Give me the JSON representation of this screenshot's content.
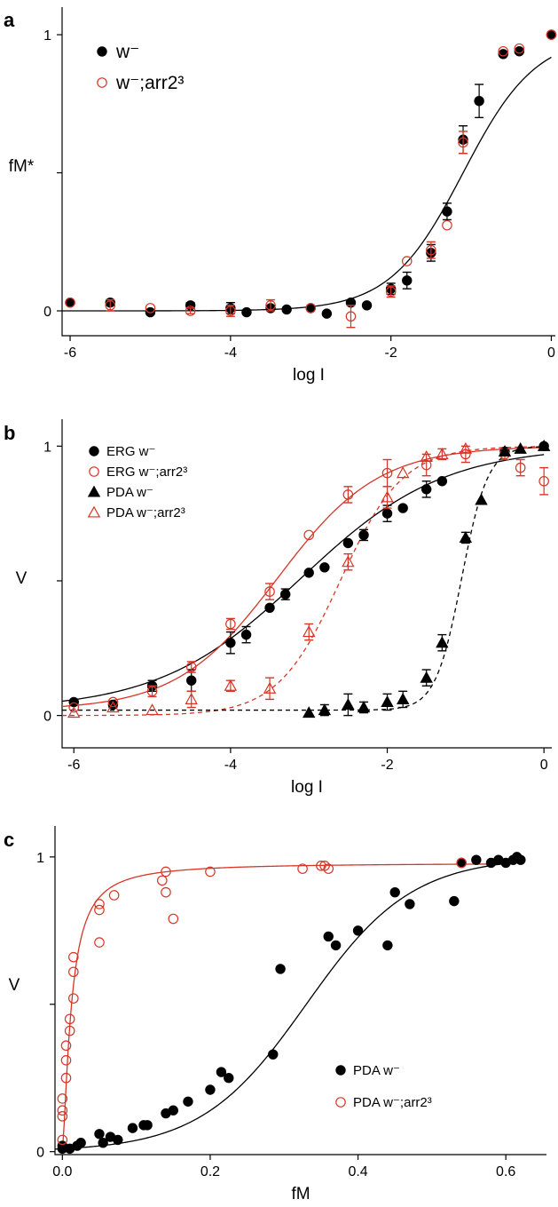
{
  "colors": {
    "black": "#000000",
    "red": "#d73527"
  },
  "chart_data": [
    {
      "panel": "a",
      "type": "scatter",
      "xlabel": "log I",
      "ylabel": "fM*",
      "xlim": [
        -6.1,
        0.05
      ],
      "ylim": [
        -0.09,
        1.1
      ],
      "xticks": [
        -6,
        -4,
        -2,
        0
      ],
      "xtick_labels": [
        "-6",
        "-4",
        "-2",
        "0"
      ],
      "yticks": [
        0,
        0.5,
        1
      ],
      "ytick_labels": [
        "0",
        "",
        "1"
      ],
      "legend": {
        "position": "top-left",
        "style": "large",
        "entries": [
          "w⁻",
          "w⁻;arr2³"
        ]
      },
      "series": [
        {
          "name": "w⁻",
          "marker": "filled-circle",
          "color": "#000000",
          "x": [
            -6,
            -5.5,
            -5,
            -4.5,
            -4,
            -3.8,
            -3.5,
            -3.3,
            -3,
            -2.8,
            -2.5,
            -2.3,
            -2,
            -1.8,
            -1.5,
            -1.3,
            -1.1,
            -0.9,
            -0.6,
            -0.4,
            0
          ],
          "y": [
            0.03,
            0.03,
            -0.005,
            0.02,
            0.01,
            -0.005,
            0.01,
            0.005,
            0.01,
            -0.01,
            0.03,
            0.02,
            0.08,
            0.11,
            0.21,
            0.36,
            0.62,
            0.76,
            0.93,
            0.94,
            1.0
          ],
          "err": [
            0,
            0.01,
            0,
            0.01,
            0.02,
            0,
            0,
            0,
            0,
            0,
            0,
            0,
            0.02,
            0.03,
            0.03,
            0.03,
            0.05,
            0.06,
            0,
            0,
            0
          ]
        },
        {
          "name": "w⁻;arr2³",
          "marker": "open-circle",
          "color": "#d73527",
          "x": [
            -6,
            -5.5,
            -5,
            -4.5,
            -4,
            -3.5,
            -3,
            -2.5,
            -2,
            -1.8,
            -1.5,
            -1.3,
            -1.1,
            -0.6,
            -0.4,
            0
          ],
          "y": [
            0.03,
            0.02,
            0.01,
            0.0,
            0.0,
            0.02,
            0.01,
            -0.02,
            0.07,
            0.18,
            0.22,
            0.31,
            0.61,
            0.94,
            0.95,
            1.0
          ],
          "err": [
            0,
            0.02,
            0,
            0.01,
            0.02,
            0.02,
            0,
            0.04,
            0.02,
            0,
            0.03,
            0,
            0.04,
            0,
            0,
            0
          ]
        }
      ],
      "curves": [
        {
          "color": "#000000",
          "dash": "solid",
          "fn": "logistic",
          "x0": -1.1,
          "k": 2.2,
          "bottom": 0,
          "top": 1.0
        }
      ]
    },
    {
      "panel": "b",
      "type": "scatter",
      "xlabel": "log I",
      "ylabel": "V",
      "xlim": [
        -6.15,
        0.1
      ],
      "ylim": [
        -0.12,
        1.1
      ],
      "xticks": [
        -6,
        -4,
        -2,
        0
      ],
      "xtick_labels": [
        "-6",
        "-4",
        "-2",
        "0"
      ],
      "yticks": [
        0,
        0.5,
        1
      ],
      "ytick_labels": [
        "0",
        "",
        "1"
      ],
      "legend": {
        "position": "top-left",
        "style": "small",
        "entries": [
          "ERG w⁻",
          "ERG w⁻;arr2³",
          "PDA w⁻",
          "PDA w⁻;arr2³"
        ]
      },
      "series": [
        {
          "name": "ERG w⁻",
          "marker": "filled-circle",
          "color": "#000000",
          "x": [
            -6,
            -5.5,
            -5,
            -4.5,
            -4,
            -3.8,
            -3.5,
            -3.3,
            -3,
            -2.8,
            -2.5,
            -2.3,
            -2,
            -1.8,
            -1.5,
            -1.3,
            -0.5,
            0
          ],
          "y": [
            0.05,
            0.04,
            0.11,
            0.13,
            0.27,
            0.3,
            0.4,
            0.45,
            0.53,
            0.55,
            0.64,
            0.67,
            0.75,
            0.77,
            0.84,
            0.87,
            0.98,
            1.0
          ],
          "err": [
            0,
            0.01,
            0.02,
            0.04,
            0.04,
            0.03,
            0,
            0.02,
            0,
            0,
            0,
            0.02,
            0.03,
            0,
            0.03,
            0,
            0,
            0
          ]
        },
        {
          "name": "ERG w⁻;arr2³",
          "marker": "open-circle",
          "color": "#d73527",
          "x": [
            -6,
            -5.5,
            -5,
            -4.5,
            -4,
            -3.5,
            -3,
            -2.5,
            -2,
            -1.5,
            -1,
            -0.5,
            -0.3,
            0
          ],
          "y": [
            0.03,
            0.05,
            0.09,
            0.18,
            0.34,
            0.46,
            0.67,
            0.82,
            0.9,
            0.93,
            0.97,
            0.97,
            0.92,
            0.87
          ],
          "err": [
            0,
            0,
            0.02,
            0.02,
            0.02,
            0.03,
            0,
            0.03,
            0.05,
            0.04,
            0.03,
            0.02,
            0.03,
            0.05
          ]
        },
        {
          "name": "PDA w⁻",
          "marker": "filled-triangle",
          "color": "#000000",
          "x": [
            -3,
            -2.8,
            -2.5,
            -2.3,
            -2,
            -1.8,
            -1.5,
            -1.3,
            -1,
            -0.8,
            -0.5,
            -0.3,
            0
          ],
          "y": [
            0.01,
            0.02,
            0.04,
            0.03,
            0.05,
            0.06,
            0.14,
            0.27,
            0.66,
            0.8,
            0.98,
            0.99,
            1.0
          ],
          "err": [
            0,
            0.02,
            0.04,
            0.02,
            0.03,
            0.03,
            0.03,
            0.03,
            0.02,
            0,
            0,
            0,
            0
          ]
        },
        {
          "name": "PDA w⁻;arr2³",
          "marker": "open-triangle",
          "color": "#d73527",
          "x": [
            -6,
            -5.5,
            -5,
            -4.5,
            -4,
            -3.5,
            -3,
            -2.5,
            -2,
            -1.8,
            -1.5,
            -1.3,
            -1
          ],
          "y": [
            0.01,
            0.03,
            0.02,
            0.06,
            0.11,
            0.1,
            0.31,
            0.57,
            0.81,
            0.9,
            0.96,
            0.97,
            0.99
          ],
          "err": [
            0,
            0,
            0,
            0.03,
            0.02,
            0.04,
            0.03,
            0.03,
            0.04,
            0,
            0,
            0.02,
            0
          ]
        }
      ],
      "curves": [
        {
          "color": "#000000",
          "dash": "solid",
          "fn": "logistic",
          "x0": -3.1,
          "k": 1.1,
          "bottom": 0.02,
          "top": 1.0
        },
        {
          "color": "#d73527",
          "dash": "solid",
          "fn": "logistic",
          "x0": -3.4,
          "k": 1.55,
          "bottom": 0.02,
          "top": 1.0
        },
        {
          "color": "#d73527",
          "dash": "dashed",
          "fn": "logistic",
          "x0": -2.6,
          "k": 2.5,
          "bottom": 0,
          "top": 1.0
        },
        {
          "color": "#000000",
          "dash": "dashed",
          "fn": "logistic",
          "x0": -1.05,
          "k": 6.0,
          "bottom": 0.02,
          "top": 1.0
        }
      ]
    },
    {
      "panel": "c",
      "type": "scatter",
      "xlabel": "fM",
      "ylabel": "V",
      "xlim": [
        -0.01,
        0.655
      ],
      "ylim": [
        -0.01,
        1.105
      ],
      "xticks": [
        0,
        0.2,
        0.4,
        0.6
      ],
      "xtick_labels": [
        "0.0",
        "0.2",
        "0.4",
        "0.6"
      ],
      "yticks": [
        0,
        0.5,
        1
      ],
      "ytick_labels": [
        "0",
        "",
        "1"
      ],
      "legend": {
        "position": "bottom-right",
        "style": "small",
        "entries": [
          "PDA w⁻",
          "PDA w⁻;arr2³"
        ]
      },
      "series": [
        {
          "name": "PDA w⁻",
          "marker": "filled-circle",
          "color": "#000000",
          "x": [
            0,
            0,
            0.01,
            0.02,
            0.025,
            0.05,
            0.055,
            0.065,
            0.075,
            0.095,
            0.11,
            0.115,
            0.14,
            0.15,
            0.17,
            0.2,
            0.215,
            0.225,
            0.285,
            0.295,
            0.36,
            0.37,
            0.4,
            0.44,
            0.45,
            0.47,
            0.53,
            0.54,
            0.56,
            0.58,
            0.59,
            0.6,
            0.61,
            0.615,
            0.62
          ],
          "y": [
            0.01,
            0.02,
            0.01,
            0.02,
            0.03,
            0.06,
            0.03,
            0.05,
            0.04,
            0.08,
            0.09,
            0.09,
            0.13,
            0.14,
            0.17,
            0.21,
            0.27,
            0.25,
            0.33,
            0.62,
            0.73,
            0.7,
            0.75,
            0.7,
            0.88,
            0.84,
            0.85,
            0.98,
            0.99,
            0.98,
            0.99,
            0.98,
            0.99,
            1.0,
            0.99
          ],
          "err": []
        },
        {
          "name": "PDA w⁻;arr2³",
          "marker": "open-circle",
          "color": "#d73527",
          "x": [
            0,
            0,
            0,
            0,
            0.005,
            0.005,
            0.005,
            0.01,
            0.01,
            0.015,
            0.015,
            0.015,
            0.05,
            0.05,
            0.05,
            0.07,
            0.135,
            0.14,
            0.14,
            0.15,
            0.2,
            0.325,
            0.35,
            0.355,
            0.36,
            0.54
          ],
          "y": [
            0.04,
            0.12,
            0.14,
            0.18,
            0.25,
            0.31,
            0.36,
            0.41,
            0.45,
            0.52,
            0.61,
            0.66,
            0.71,
            0.82,
            0.84,
            0.87,
            0.92,
            0.95,
            0.88,
            0.79,
            0.95,
            0.96,
            0.97,
            0.97,
            0.96,
            0.98
          ],
          "err": []
        }
      ],
      "curves": [
        {
          "color": "#d73527",
          "dash": "solid",
          "fn": "hill",
          "top": 0.98,
          "K": 0.012,
          "n": 1.4
        },
        {
          "color": "#000000",
          "dash": "solid",
          "fn": "logistic",
          "x0": 0.33,
          "k": 14,
          "bottom": 0.0,
          "top": 1.0
        }
      ]
    }
  ]
}
